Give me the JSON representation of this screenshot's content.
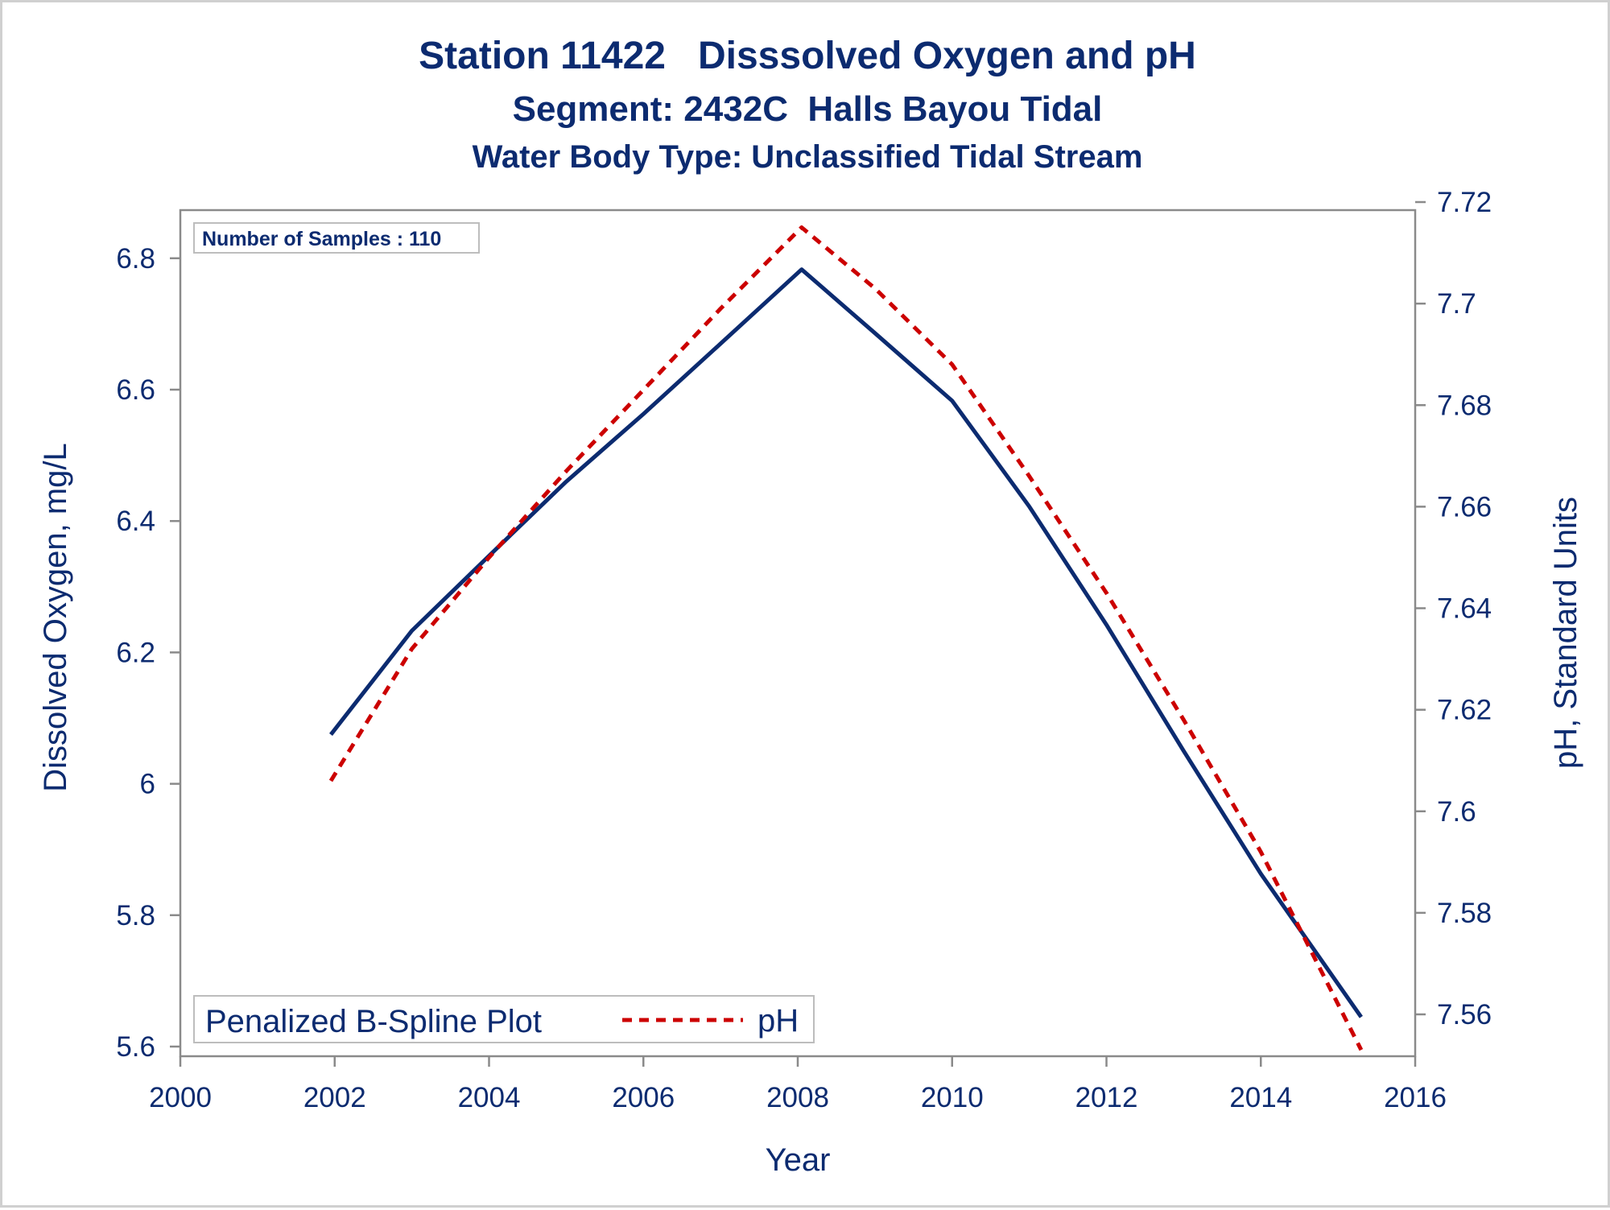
{
  "chart_data": {
    "type": "line",
    "title": "Station 11422   Disssolved Oxygen and pH",
    "subtitle": "Segment: 2432C  Halls Bayou Tidal",
    "subtitle2": "Water Body Type: Unclassified Tidal Stream",
    "xlabel": "Year",
    "ylabel_left": "Dissolved Oxygen, mg/L",
    "ylabel_right": "pH, Standard Units",
    "xlim": [
      2000,
      2016
    ],
    "ylim_left": [
      5.6,
      6.85
    ],
    "ylim_right": [
      7.552,
      7.72
    ],
    "x_ticks": [
      "2000",
      "2002",
      "2004",
      "2006",
      "2008",
      "2010",
      "2012",
      "2014",
      "2016"
    ],
    "y_ticks_left": [
      "5.6",
      "5.8",
      "6",
      "6.2",
      "6.4",
      "6.6",
      "6.8"
    ],
    "y_ticks_right": [
      "7.56",
      "7.58",
      "7.6",
      "7.62",
      "7.64",
      "7.66",
      "7.68",
      "7.7",
      "7.72"
    ],
    "inset_label": "Number of Samples : 110",
    "legend_title": "Penalized B-Spline Plot",
    "legend_position": "bottom-left",
    "grid": false,
    "series": [
      {
        "axis": "left",
        "style": "solid",
        "color": "#0c2b70",
        "x": [
          2001.95,
          2003,
          2004,
          2005,
          2006,
          2007,
          2008.05,
          2009,
          2010,
          2011,
          2012,
          2013,
          2014,
          2015.3
        ],
        "values": [
          6.075,
          6.233,
          6.347,
          6.46,
          6.563,
          6.67,
          6.783,
          6.686,
          6.583,
          6.422,
          6.242,
          6.05,
          5.863,
          5.645
        ]
      },
      {
        "name": "pH",
        "axis": "right",
        "style": "dashed",
        "color": "#cc0000",
        "x": [
          2001.95,
          2003,
          2004,
          2005,
          2006,
          2007,
          2008.05,
          2009,
          2010,
          2011,
          2012,
          2013,
          2014,
          2015.3
        ],
        "values": [
          7.606,
          7.632,
          7.65,
          7.667,
          7.683,
          7.699,
          7.715,
          7.703,
          7.688,
          7.666,
          7.643,
          7.618,
          7.592,
          7.553
        ]
      }
    ]
  }
}
